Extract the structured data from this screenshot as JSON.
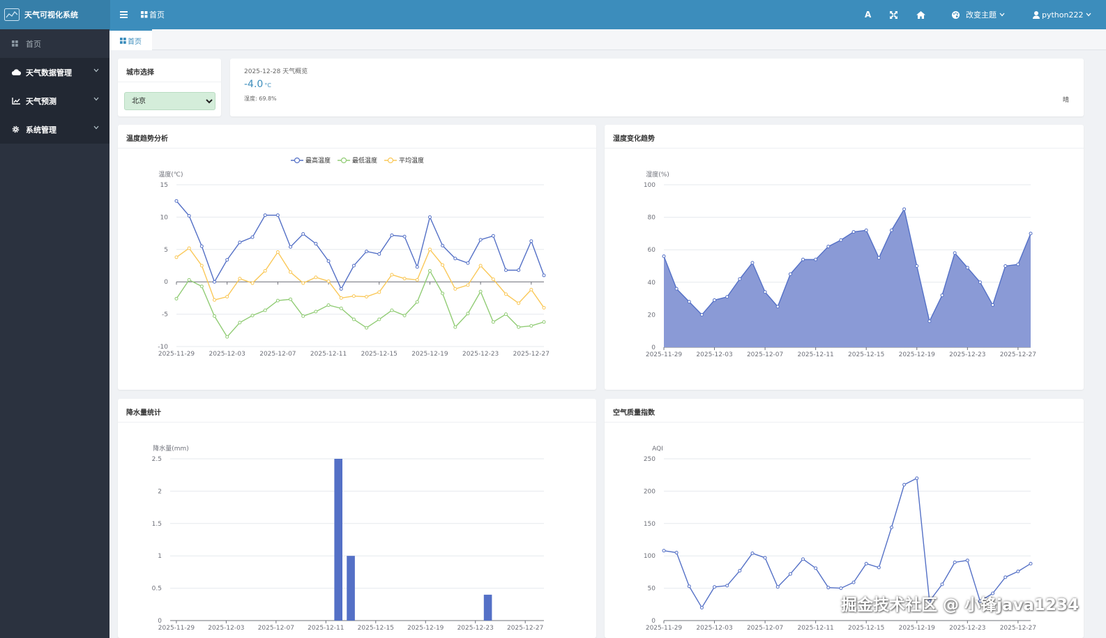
{
  "app": {
    "title": "天气可视化系统"
  },
  "header": {
    "breadcrumb": "首页",
    "font_btn": "A",
    "theme_label": "改变主题",
    "username": "python222"
  },
  "sidebar": {
    "items": [
      {
        "label": "首页",
        "icon": "dashboard-icon"
      },
      {
        "label": "天气数据管理",
        "icon": "cloud-icon"
      },
      {
        "label": "天气预测",
        "icon": "line-chart-icon"
      },
      {
        "label": "系统管理",
        "icon": "gear-icon"
      }
    ]
  },
  "tabs": [
    {
      "label": "首页"
    }
  ],
  "city_card": {
    "title": "城市选择",
    "selected": "北京"
  },
  "overview": {
    "date_label": "2025-12-28 天气概览",
    "temperature": "-4.0",
    "unit": "°C",
    "humidity": "湿度: 69.8%",
    "weather": "晴"
  },
  "charts": {
    "temperature_trend": {
      "title": "温度趋势分析"
    },
    "humidity_trend": {
      "title": "湿度变化趋势"
    },
    "precipitation": {
      "title": "降水量统计"
    },
    "aqi": {
      "title": "空气质量指数"
    }
  },
  "colors": {
    "header": "#3c8dbc",
    "sidebar": "#2b323f",
    "series_max": "#5470c6",
    "series_min": "#91cc75",
    "series_avg": "#fac858"
  },
  "chart_data": [
    {
      "type": "line",
      "x": [
        "2025-11-29",
        "2025-11-30",
        "2025-12-01",
        "2025-12-02",
        "2025-12-03",
        "2025-12-04",
        "2025-12-05",
        "2025-12-06",
        "2025-12-07",
        "2025-12-08",
        "2025-12-09",
        "2025-12-10",
        "2025-12-11",
        "2025-12-12",
        "2025-12-13",
        "2025-12-14",
        "2025-12-15",
        "2025-12-16",
        "2025-12-17",
        "2025-12-18",
        "2025-12-19",
        "2025-12-20",
        "2025-12-21",
        "2025-12-22",
        "2025-12-23",
        "2025-12-24",
        "2025-12-25",
        "2025-12-26",
        "2025-12-27",
        "2025-12-28"
      ],
      "xticks": [
        "2025-11-29",
        "2025-12-03",
        "2025-12-07",
        "2025-12-11",
        "2025-12-15",
        "2025-12-19",
        "2025-12-23",
        "2025-12-27"
      ],
      "ylabel": "温度(℃)",
      "ylim": [
        -10,
        15
      ],
      "yticks": [
        -10,
        -5,
        0,
        5,
        10,
        15
      ],
      "legend_position": "top",
      "series": [
        {
          "name": "最高温度",
          "values": [
            12.5,
            10.2,
            5.5,
            0.0,
            3.4,
            6.1,
            6.9,
            10.3,
            10.3,
            5.4,
            7.4,
            5.9,
            3.2,
            -1.1,
            2.5,
            4.7,
            4.3,
            7.2,
            7.0,
            2.3,
            10.0,
            5.6,
            3.6,
            2.9,
            6.5,
            7.1,
            1.8,
            1.8,
            6.3,
            1.0
          ]
        },
        {
          "name": "最低温度",
          "values": [
            -2.6,
            0.3,
            -0.7,
            -5.3,
            -8.5,
            -6.3,
            -5.2,
            -4.4,
            -2.9,
            -2.7,
            -5.3,
            -4.6,
            -3.6,
            -4.1,
            -5.8,
            -7.1,
            -5.8,
            -4.4,
            -5.2,
            -3.1,
            1.7,
            -1.8,
            -7.0,
            -4.9,
            -1.5,
            -6.2,
            -5.0,
            -7.0,
            -6.8,
            -6.2
          ]
        },
        {
          "name": "平均温度",
          "values": [
            3.8,
            5.2,
            2.5,
            -2.8,
            -2.3,
            0.5,
            -0.2,
            1.7,
            4.6,
            1.5,
            -0.2,
            0.7,
            0.1,
            -2.5,
            -2.2,
            -2.3,
            -1.6,
            1.1,
            0.5,
            0.3,
            5.0,
            2.6,
            -1.1,
            -0.5,
            2.5,
            0.4,
            -1.9,
            -3.3,
            -1.2,
            -4.0
          ]
        }
      ]
    },
    {
      "type": "area",
      "x": [
        "2025-11-29",
        "2025-11-30",
        "2025-12-01",
        "2025-12-02",
        "2025-12-03",
        "2025-12-04",
        "2025-12-05",
        "2025-12-06",
        "2025-12-07",
        "2025-12-08",
        "2025-12-09",
        "2025-12-10",
        "2025-12-11",
        "2025-12-12",
        "2025-12-13",
        "2025-12-14",
        "2025-12-15",
        "2025-12-16",
        "2025-12-17",
        "2025-12-18",
        "2025-12-19",
        "2025-12-20",
        "2025-12-21",
        "2025-12-22",
        "2025-12-23",
        "2025-12-24",
        "2025-12-25",
        "2025-12-26",
        "2025-12-27",
        "2025-12-28"
      ],
      "xticks": [
        "2025-11-29",
        "2025-12-03",
        "2025-12-07",
        "2025-12-11",
        "2025-12-15",
        "2025-12-19",
        "2025-12-23",
        "2025-12-27"
      ],
      "ylabel": "湿度(%)",
      "ylim": [
        0,
        100
      ],
      "yticks": [
        0,
        20,
        40,
        60,
        80,
        100
      ],
      "series": [
        {
          "values": [
            56,
            36,
            28,
            20,
            29,
            31,
            42,
            52,
            34,
            25,
            45,
            54,
            54,
            62,
            66,
            71,
            72,
            55,
            72,
            85,
            50,
            16,
            32,
            58,
            49,
            40,
            26,
            50,
            51,
            70
          ]
        }
      ]
    },
    {
      "type": "bar",
      "x": [
        "2025-11-29",
        "2025-11-30",
        "2025-12-01",
        "2025-12-02",
        "2025-12-03",
        "2025-12-04",
        "2025-12-05",
        "2025-12-06",
        "2025-12-07",
        "2025-12-08",
        "2025-12-09",
        "2025-12-10",
        "2025-12-11",
        "2025-12-12",
        "2025-12-13",
        "2025-12-14",
        "2025-12-15",
        "2025-12-16",
        "2025-12-17",
        "2025-12-18",
        "2025-12-19",
        "2025-12-20",
        "2025-12-21",
        "2025-12-22",
        "2025-12-23",
        "2025-12-24",
        "2025-12-25",
        "2025-12-26",
        "2025-12-27",
        "2025-12-28"
      ],
      "xticks": [
        "2025-11-29",
        "2025-12-03",
        "2025-12-07",
        "2025-12-11",
        "2025-12-15",
        "2025-12-19",
        "2025-12-23",
        "2025-12-27"
      ],
      "ylabel": "降水量(mm)",
      "ylim": [
        0,
        2.5
      ],
      "yticks": [
        0,
        0.5,
        1,
        1.5,
        2,
        2.5
      ],
      "series": [
        {
          "values": [
            0,
            0,
            0,
            0,
            0,
            0,
            0,
            0,
            0,
            0,
            0,
            0,
            0,
            2.5,
            1.0,
            0,
            0,
            0,
            0,
            0,
            0,
            0,
            0,
            0,
            0,
            0.4,
            0,
            0,
            0,
            0
          ]
        }
      ]
    },
    {
      "type": "line",
      "x": [
        "2025-11-29",
        "2025-11-30",
        "2025-12-01",
        "2025-12-02",
        "2025-12-03",
        "2025-12-04",
        "2025-12-05",
        "2025-12-06",
        "2025-12-07",
        "2025-12-08",
        "2025-12-09",
        "2025-12-10",
        "2025-12-11",
        "2025-12-12",
        "2025-12-13",
        "2025-12-14",
        "2025-12-15",
        "2025-12-16",
        "2025-12-17",
        "2025-12-18",
        "2025-12-19",
        "2025-12-20",
        "2025-12-21",
        "2025-12-22",
        "2025-12-23",
        "2025-12-24",
        "2025-12-25",
        "2025-12-26",
        "2025-12-27",
        "2025-12-28"
      ],
      "xticks": [
        "2025-11-29",
        "2025-12-03",
        "2025-12-07",
        "2025-12-11",
        "2025-12-15",
        "2025-12-19",
        "2025-12-23",
        "2025-12-27"
      ],
      "ylabel": "AQI",
      "ylim": [
        0,
        250
      ],
      "yticks": [
        0,
        50,
        100,
        150,
        200,
        250
      ],
      "series": [
        {
          "values": [
            108,
            105,
            53,
            20,
            52,
            54,
            77,
            104,
            97,
            52,
            72,
            95,
            81,
            51,
            50,
            59,
            88,
            82,
            144,
            210,
            220,
            30,
            56,
            90,
            93,
            30,
            42,
            67,
            76,
            88
          ]
        }
      ]
    }
  ],
  "watermark": "掘金技术社区 @ 小锋java1234"
}
